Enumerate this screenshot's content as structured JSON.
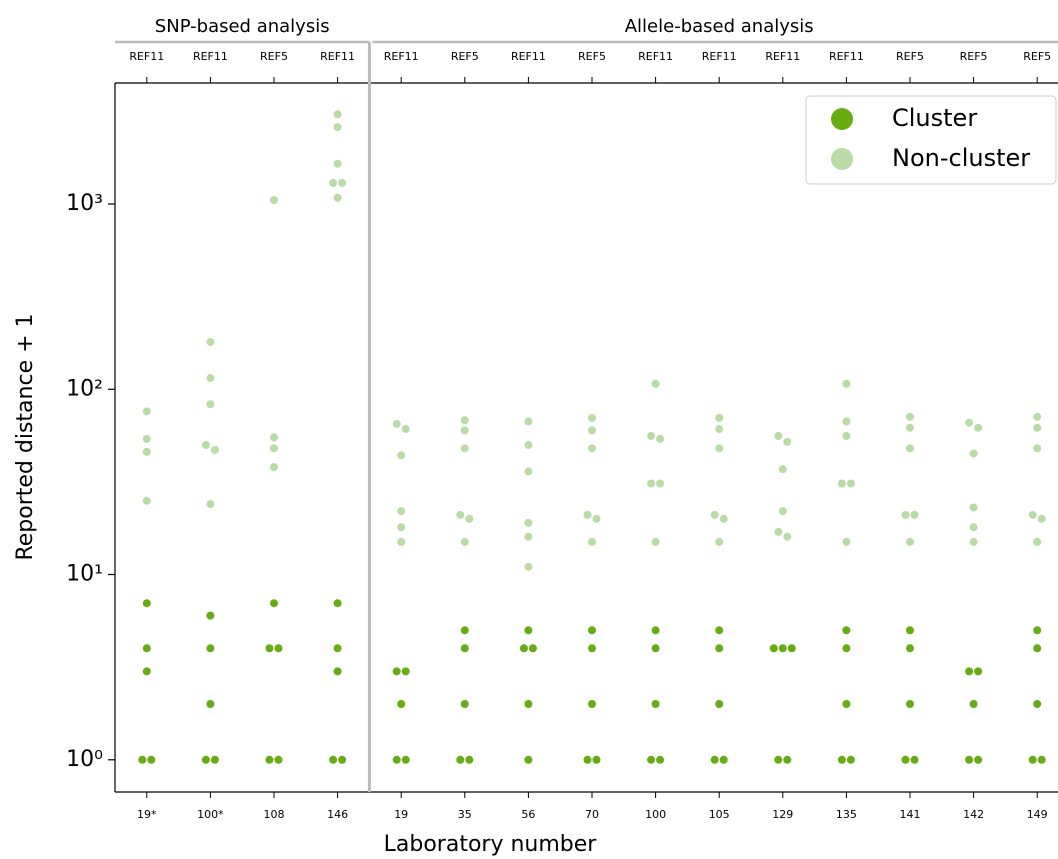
{
  "chart_data": {
    "type": "strip",
    "x_label": "Laboratory number",
    "y_label": "Reported distance + 1",
    "log_y": true,
    "ylim": [
      0.67,
      4500
    ],
    "yticks": [
      {
        "value": 1,
        "label": "10⁰"
      },
      {
        "value": 10,
        "label": "10¹"
      },
      {
        "value": 100,
        "label": "10²"
      },
      {
        "value": 1000,
        "label": "10³"
      }
    ],
    "legend": "upper right",
    "groups": [
      {
        "label": "SNP-based analysis",
        "categories": [
          "19*",
          "100*",
          "108",
          "146"
        ],
        "references": [
          "REF11",
          "REF11",
          "REF5",
          "REF11"
        ]
      },
      {
        "label": "Allele-based analysis",
        "categories": [
          "19",
          "35",
          "56",
          "70",
          "100",
          "105",
          "129",
          "135",
          "141",
          "142",
          "149"
        ],
        "references": [
          "REF11",
          "REF5",
          "REF11",
          "REF5",
          "REF11",
          "REF11",
          "REF11",
          "REF11",
          "REF5",
          "REF5",
          "REF5"
        ]
      }
    ],
    "series": [
      {
        "name": "Cluster",
        "color": "#66ac12",
        "values": [
          [
            1,
            1,
            3,
            4,
            7
          ],
          [
            1,
            1,
            2,
            4,
            6
          ],
          [
            1,
            1,
            4,
            4,
            7
          ],
          [
            1,
            1,
            3,
            4,
            7
          ],
          [
            1,
            1,
            2,
            3,
            3
          ],
          [
            1,
            1,
            2,
            4,
            5
          ],
          [
            1,
            2,
            4,
            4,
            5
          ],
          [
            1,
            1,
            2,
            4,
            5
          ],
          [
            1,
            1,
            2,
            4,
            5
          ],
          [
            1,
            1,
            2,
            4,
            5
          ],
          [
            1,
            1,
            4,
            4,
            4
          ],
          [
            1,
            1,
            2,
            4,
            5
          ],
          [
            1,
            1,
            2,
            4,
            5
          ],
          [
            1,
            1,
            2,
            3,
            3
          ],
          [
            1,
            1,
            2,
            4,
            5
          ]
        ]
      },
      {
        "name": "Non-cluster",
        "color": "#b9dba5",
        "values": [
          [
            25,
            46,
            54,
            76
          ],
          [
            24,
            47,
            50,
            83,
            115,
            180
          ],
          [
            38,
            48,
            55,
            1050
          ],
          [
            1080,
            1300,
            1300,
            1650,
            2600,
            3050
          ],
          [
            15,
            18,
            22,
            44,
            61,
            65
          ],
          [
            15,
            20,
            21,
            48,
            60,
            68
          ],
          [
            11,
            16,
            19,
            36,
            50,
            67
          ],
          [
            15,
            20,
            21,
            48,
            60,
            70
          ],
          [
            15,
            31,
            31,
            54,
            56,
            107
          ],
          [
            15,
            20,
            21,
            48,
            61,
            70
          ],
          [
            16,
            17,
            22,
            37,
            52,
            56
          ],
          [
            15,
            31,
            31,
            56,
            67,
            107
          ],
          [
            15,
            21,
            21,
            48,
            62,
            71
          ],
          [
            15,
            18,
            23,
            45,
            62,
            66
          ],
          [
            15,
            20,
            21,
            48,
            62,
            71
          ]
        ]
      }
    ]
  }
}
